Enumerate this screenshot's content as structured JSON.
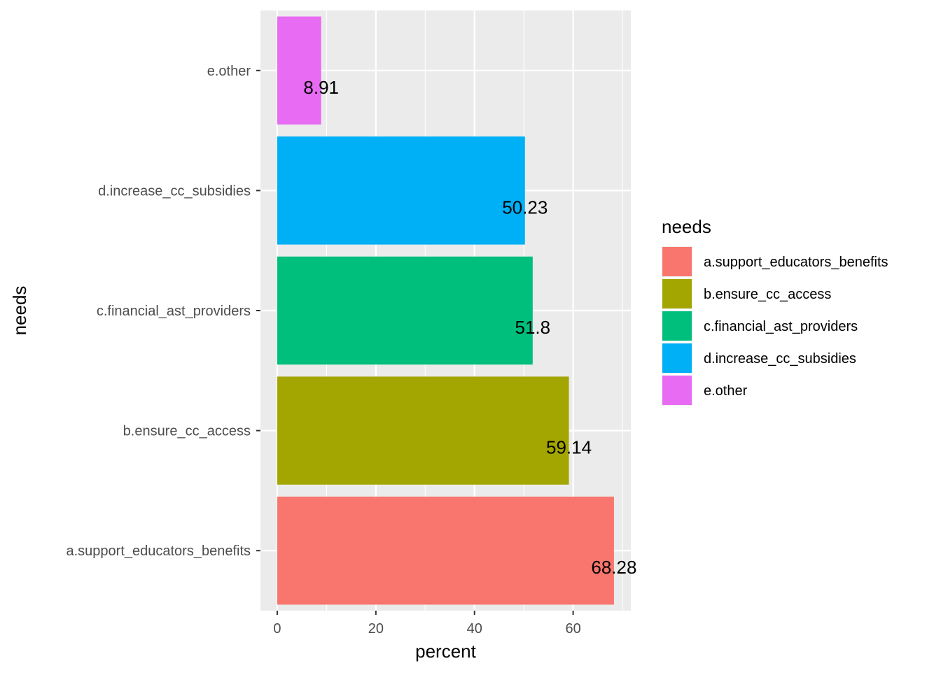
{
  "chart_data": {
    "type": "bar",
    "orientation": "horizontal",
    "categories": [
      "a.support_educators_benefits",
      "b.ensure_cc_access",
      "c.financial_ast_providers",
      "d.increase_cc_subsidies",
      "e.other"
    ],
    "values": [
      68.28,
      59.14,
      51.8,
      50.23,
      8.91
    ],
    "data_labels": [
      "68.28",
      "59.14",
      "51.8",
      "50.23",
      "8.91"
    ],
    "colors": [
      "#F8766D",
      "#A3A500",
      "#00BF7D",
      "#00B0F6",
      "#E76BF3"
    ],
    "title": "",
    "xlabel": "percent",
    "ylabel": "needs",
    "xlim": [
      -3.4,
      71.7
    ],
    "x_ticks": [
      0,
      20,
      40,
      60
    ],
    "x_tick_labels": [
      "0",
      "20",
      "40",
      "60"
    ],
    "grid": true,
    "panel_background": "#EBEBEB",
    "grid_color": "#FFFFFF",
    "legend": {
      "title": "needs",
      "position": "right",
      "entries": [
        "a.support_educators_benefits",
        "b.ensure_cc_access",
        "c.financial_ast_providers",
        "d.increase_cc_subsidies",
        "e.other"
      ]
    }
  }
}
